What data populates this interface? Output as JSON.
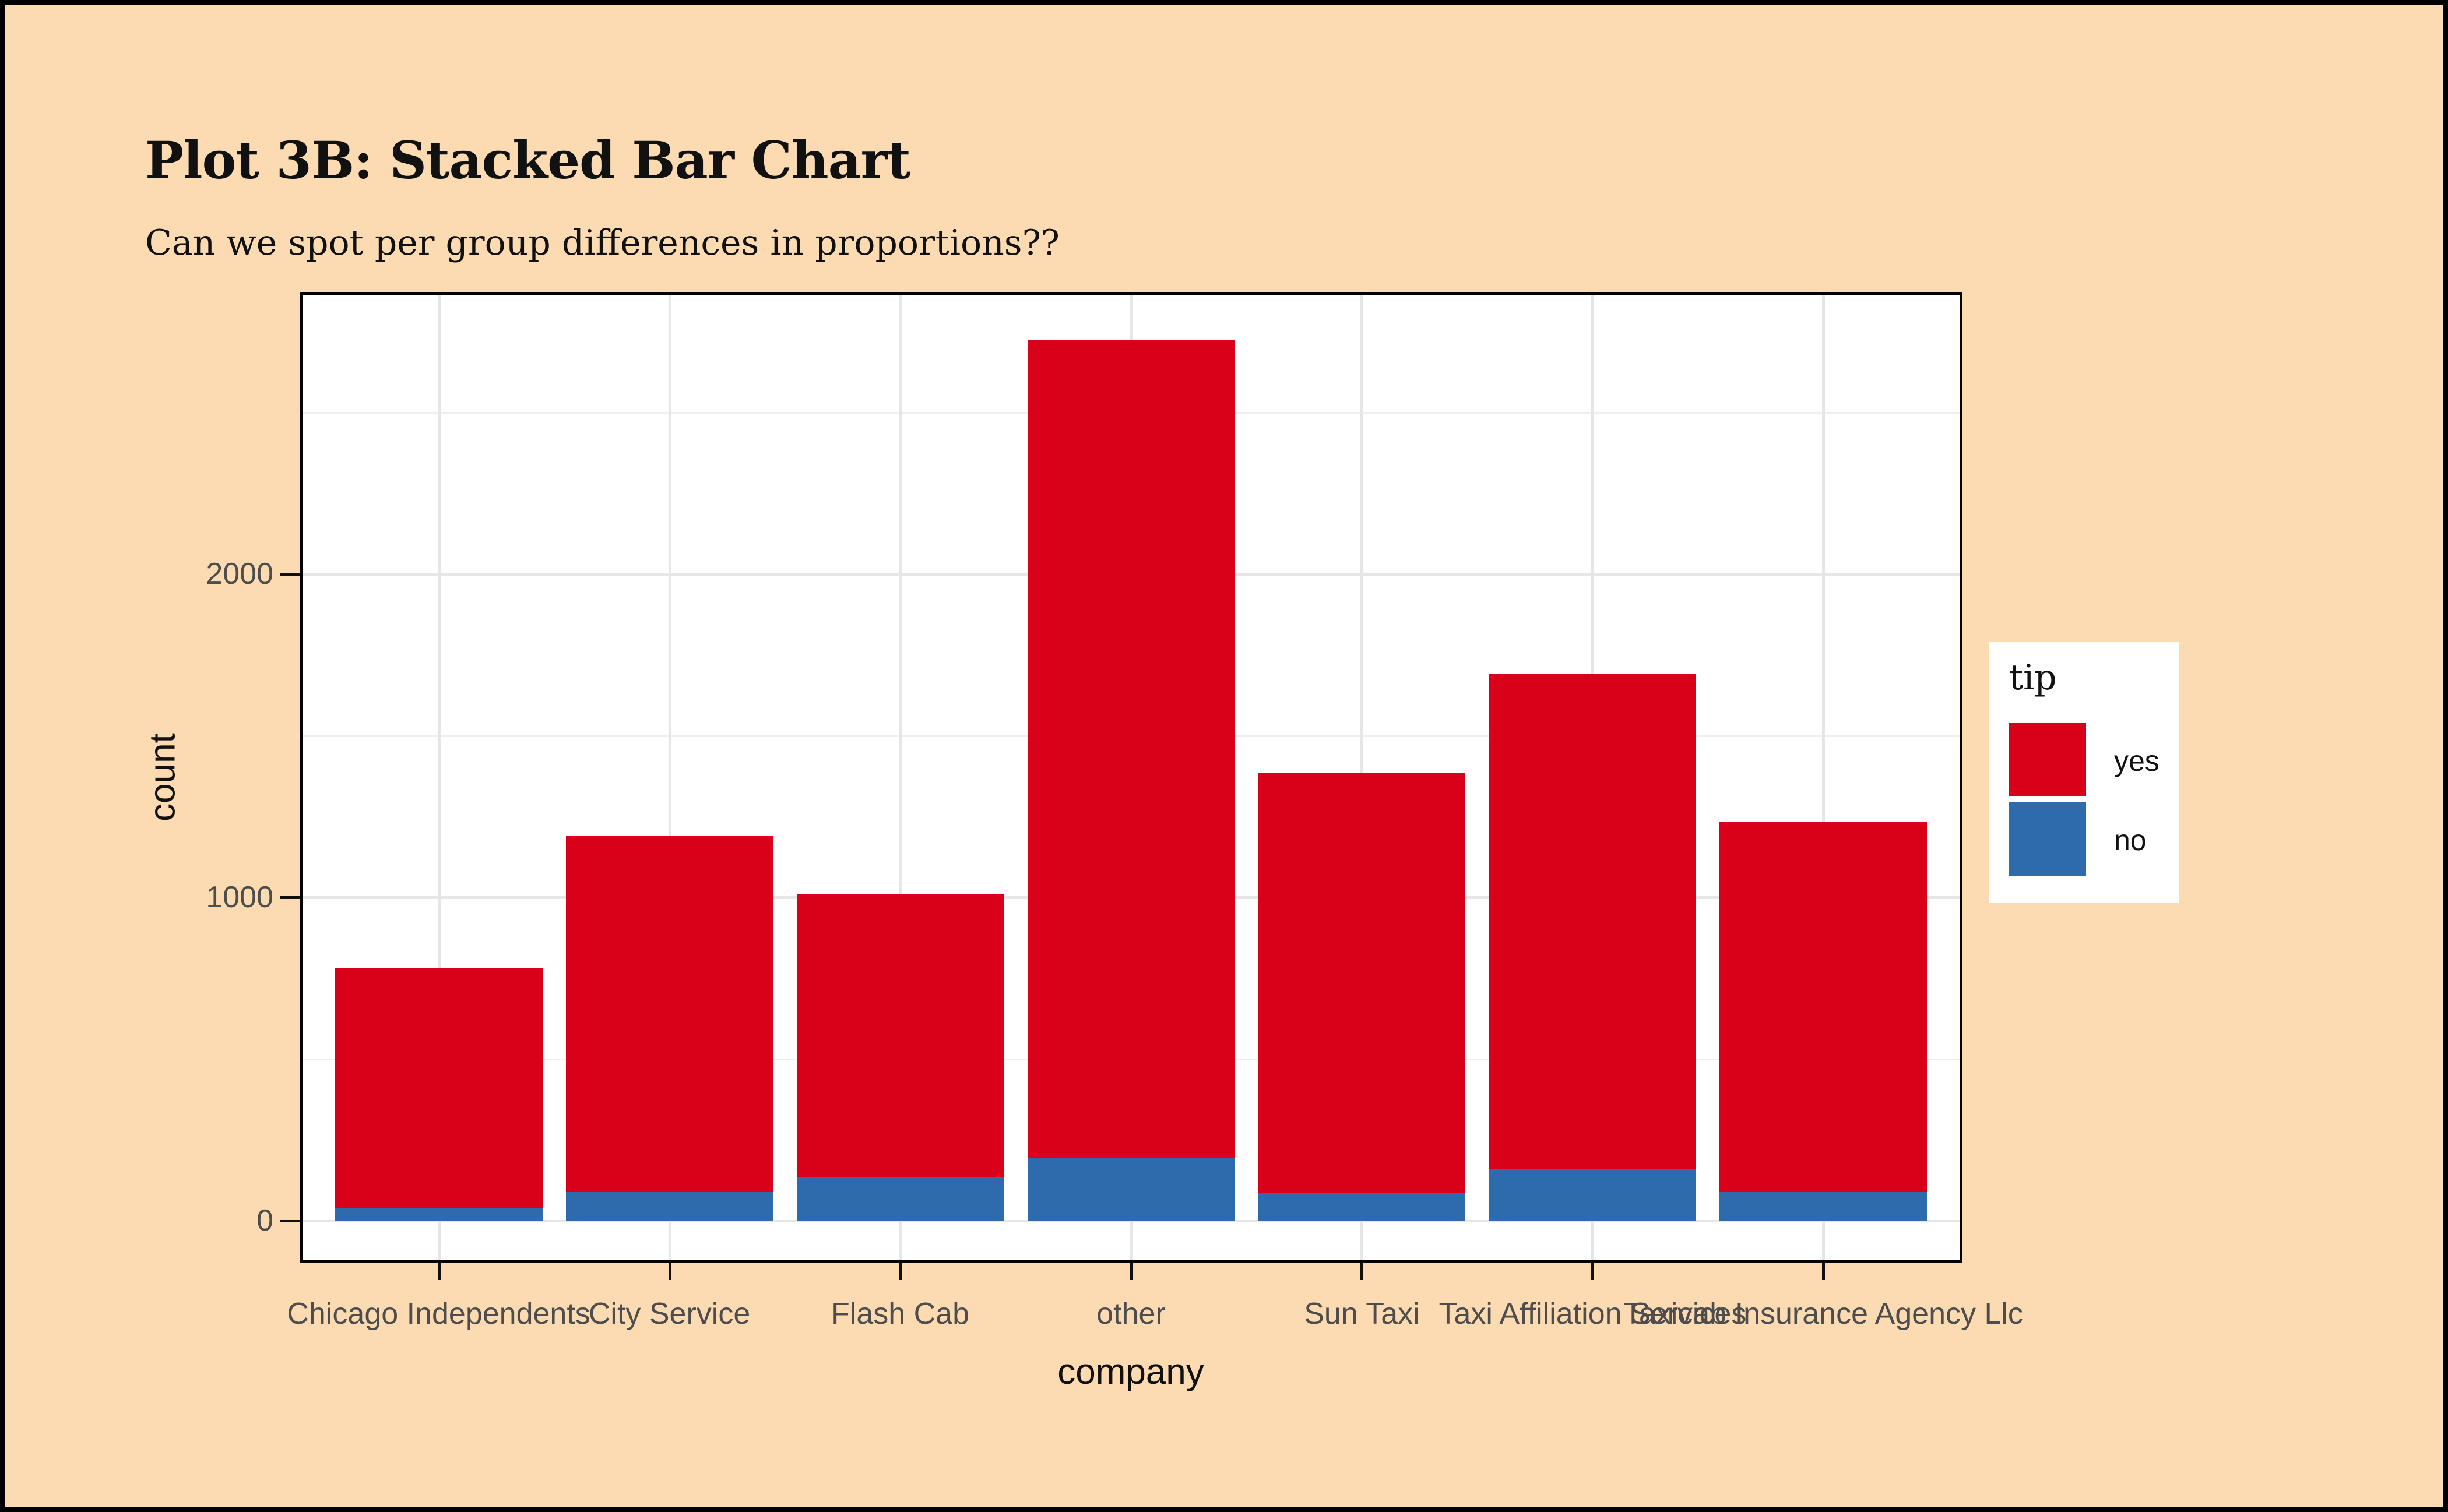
{
  "title": "Plot 3B: Stacked Bar Chart",
  "subtitle": "Can we spot per group differences in proportions??",
  "chart_data": {
    "type": "bar",
    "stacked": true,
    "title": "Plot 3B: Stacked Bar Chart",
    "subtitle": "Can we spot per group differences in proportions??",
    "xlabel": "company",
    "ylabel": "count",
    "categories": [
      "Chicago Independents",
      "City Service",
      "Flash Cab",
      "other",
      "Sun Taxi",
      "Taxi Affiliation Services",
      "Taxicab Insurance Agency Llc"
    ],
    "series": [
      {
        "name": "yes",
        "color": "#D90019",
        "values": [
          740,
          1100,
          875,
          2530,
          1300,
          1530,
          1145
        ]
      },
      {
        "name": "no",
        "color": "#2E6BAC",
        "values": [
          40,
          90,
          135,
          195,
          85,
          160,
          90
        ]
      }
    ],
    "stack_order_bottom_to_top": [
      "no",
      "yes"
    ],
    "totals": [
      780,
      1190,
      1010,
      2725,
      1385,
      1690,
      1235
    ],
    "yticks": [
      0,
      1000,
      2000
    ],
    "ylim": [
      0,
      2870
    ],
    "grid": true,
    "legend_title": "tip",
    "legend_position": "right",
    "legend_entries": [
      "yes",
      "no"
    ]
  },
  "colors": {
    "page_background": "#FCDBB2",
    "panel_background": "#FFFFFF",
    "outer_border": "#000000",
    "panel_border": "#000000",
    "grid_major": "#E6E6E6",
    "grid_minor": "#EFEFEF",
    "tick_label": "#4D4D4D",
    "text": "#111111",
    "yes_fill": "#D90019",
    "no_fill": "#2E6BAC"
  }
}
